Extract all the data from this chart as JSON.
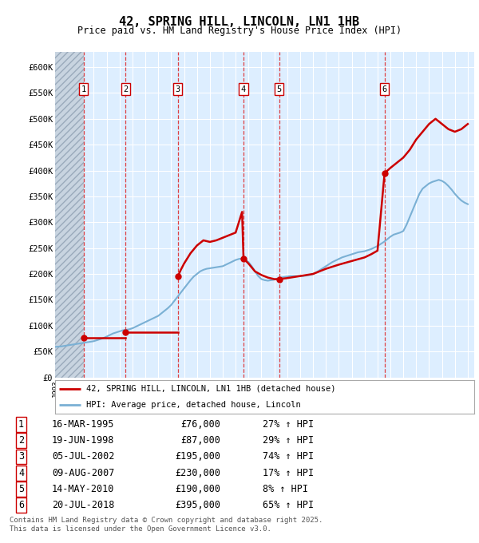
{
  "title": "42, SPRING HILL, LINCOLN, LN1 1HB",
  "subtitle": "Price paid vs. HM Land Registry's House Price Index (HPI)",
  "ylim": [
    0,
    630000
  ],
  "yticks": [
    0,
    50000,
    100000,
    150000,
    200000,
    250000,
    300000,
    350000,
    400000,
    450000,
    500000,
    550000,
    600000
  ],
  "ytick_labels": [
    "£0",
    "£50K",
    "£100K",
    "£150K",
    "£200K",
    "£250K",
    "£300K",
    "£350K",
    "£400K",
    "£450K",
    "£500K",
    "£550K",
    "£600K"
  ],
  "xlim_start": 1993.0,
  "xlim_end": 2025.5,
  "plot_bg_color": "#ddeeff",
  "fig_bg_color": "#ffffff",
  "grid_color": "#ffffff",
  "sale_dates_year": [
    1995.21,
    1998.47,
    2002.51,
    2007.61,
    2010.37,
    2018.55
  ],
  "sale_prices": [
    76000,
    87000,
    195000,
    230000,
    190000,
    395000
  ],
  "sale_labels": [
    "1",
    "2",
    "3",
    "4",
    "5",
    "6"
  ],
  "sale_date_strings": [
    "16-MAR-1995",
    "19-JUN-1998",
    "05-JUL-2002",
    "09-AUG-2007",
    "14-MAY-2010",
    "20-JUL-2018"
  ],
  "sale_price_strings": [
    "£76,000",
    "£87,000",
    "£195,000",
    "£230,000",
    "£190,000",
    "£395,000"
  ],
  "sale_hpi_strings": [
    "27% ↑ HPI",
    "29% ↑ HPI",
    "74% ↑ HPI",
    "17% ↑ HPI",
    "8% ↑ HPI",
    "65% ↑ HPI"
  ],
  "red_line_color": "#cc0000",
  "blue_line_color": "#7ab0d4",
  "legend_label_red": "42, SPRING HILL, LINCOLN, LN1 1HB (detached house)",
  "legend_label_blue": "HPI: Average price, detached house, Lincoln",
  "footer_text": "Contains HM Land Registry data © Crown copyright and database right 2025.\nThis data is licensed under the Open Government Licence v3.0.",
  "hpi_years": [
    1993.0,
    1993.25,
    1993.5,
    1993.75,
    1994.0,
    1994.25,
    1994.5,
    1994.75,
    1995.0,
    1995.25,
    1995.5,
    1995.75,
    1996.0,
    1996.25,
    1996.5,
    1996.75,
    1997.0,
    1997.25,
    1997.5,
    1997.75,
    1998.0,
    1998.25,
    1998.5,
    1998.75,
    1999.0,
    1999.25,
    1999.5,
    1999.75,
    2000.0,
    2000.25,
    2000.5,
    2000.75,
    2001.0,
    2001.25,
    2001.5,
    2001.75,
    2002.0,
    2002.25,
    2002.5,
    2002.75,
    2003.0,
    2003.25,
    2003.5,
    2003.75,
    2004.0,
    2004.25,
    2004.5,
    2004.75,
    2005.0,
    2005.25,
    2005.5,
    2005.75,
    2006.0,
    2006.25,
    2006.5,
    2006.75,
    2007.0,
    2007.25,
    2007.5,
    2007.75,
    2008.0,
    2008.25,
    2008.5,
    2008.75,
    2009.0,
    2009.25,
    2009.5,
    2009.75,
    2010.0,
    2010.25,
    2010.5,
    2010.75,
    2011.0,
    2011.25,
    2011.5,
    2011.75,
    2012.0,
    2012.25,
    2012.5,
    2012.75,
    2013.0,
    2013.25,
    2013.5,
    2013.75,
    2014.0,
    2014.25,
    2014.5,
    2014.75,
    2015.0,
    2015.25,
    2015.5,
    2015.75,
    2016.0,
    2016.25,
    2016.5,
    2016.75,
    2017.0,
    2017.25,
    2017.5,
    2017.75,
    2018.0,
    2018.25,
    2018.5,
    2018.75,
    2019.0,
    2019.25,
    2019.5,
    2019.75,
    2020.0,
    2020.25,
    2020.5,
    2020.75,
    2021.0,
    2021.25,
    2021.5,
    2021.75,
    2022.0,
    2022.25,
    2022.5,
    2022.75,
    2023.0,
    2023.25,
    2023.5,
    2023.75,
    2024.0,
    2024.25,
    2024.5,
    2024.75,
    2025.0
  ],
  "hpi_values": [
    59000,
    59500,
    60000,
    61000,
    62000,
    63000,
    64000,
    65000,
    66000,
    67000,
    68000,
    69000,
    70000,
    72000,
    74000,
    76000,
    79000,
    82000,
    85000,
    87000,
    89000,
    91000,
    92000,
    93000,
    95000,
    98000,
    101000,
    104000,
    107000,
    110000,
    113000,
    116000,
    119000,
    124000,
    129000,
    134000,
    140000,
    148000,
    156000,
    164000,
    172000,
    180000,
    188000,
    195000,
    200000,
    205000,
    208000,
    210000,
    211000,
    212000,
    213000,
    214000,
    215000,
    218000,
    221000,
    224000,
    227000,
    229000,
    230000,
    228000,
    223000,
    215000,
    205000,
    196000,
    190000,
    188000,
    187000,
    188000,
    189000,
    191000,
    193000,
    194000,
    195000,
    196000,
    196000,
    196000,
    196000,
    196000,
    197000,
    198000,
    200000,
    203000,
    207000,
    211000,
    215000,
    219000,
    223000,
    226000,
    229000,
    232000,
    234000,
    236000,
    238000,
    240000,
    242000,
    243000,
    244000,
    246000,
    248000,
    251000,
    254000,
    258000,
    262000,
    267000,
    272000,
    276000,
    278000,
    280000,
    283000,
    295000,
    310000,
    325000,
    340000,
    355000,
    365000,
    370000,
    375000,
    378000,
    380000,
    382000,
    380000,
    376000,
    370000,
    363000,
    355000,
    348000,
    342000,
    338000,
    335000
  ],
  "red_segments": [
    {
      "x": [
        1995.21,
        1998.47
      ],
      "y": [
        76000,
        76000
      ]
    },
    {
      "x": [
        1998.47,
        2002.51
      ],
      "y": [
        87000,
        87000
      ]
    },
    {
      "x": [
        2002.51,
        2002.75,
        2003.0,
        2003.5,
        2004.0,
        2004.5,
        2005.0,
        2005.5,
        2006.0,
        2006.5,
        2007.0,
        2007.25,
        2007.5,
        2007.61
      ],
      "y": [
        195000,
        208000,
        220000,
        240000,
        255000,
        265000,
        262000,
        265000,
        270000,
        275000,
        280000,
        300000,
        320000,
        230000
      ]
    },
    {
      "x": [
        2007.61,
        2008.0,
        2008.5,
        2009.0,
        2009.5,
        2010.0,
        2010.37
      ],
      "y": [
        230000,
        220000,
        205000,
        198000,
        193000,
        190000,
        190000
      ]
    },
    {
      "x": [
        2010.37,
        2011.0,
        2012.0,
        2013.0,
        2014.0,
        2015.0,
        2016.0,
        2017.0,
        2017.5,
        2018.0,
        2018.55
      ],
      "y": [
        190000,
        192000,
        196000,
        200000,
        210000,
        218000,
        225000,
        232000,
        238000,
        245000,
        395000
      ]
    },
    {
      "x": [
        2018.55,
        2019.0,
        2019.5,
        2020.0,
        2020.5,
        2021.0,
        2021.5,
        2022.0,
        2022.5,
        2023.0,
        2023.5,
        2024.0,
        2024.5,
        2025.0
      ],
      "y": [
        395000,
        405000,
        415000,
        425000,
        440000,
        460000,
        475000,
        490000,
        500000,
        490000,
        480000,
        475000,
        480000,
        490000
      ]
    }
  ]
}
